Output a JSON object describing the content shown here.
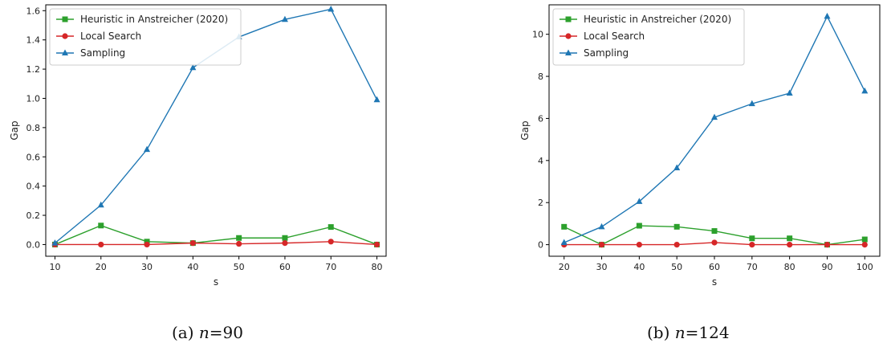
{
  "chart_data": [
    {
      "type": "line",
      "caption_prefix": "(a)",
      "caption_var": "n",
      "caption_value": "=90",
      "xlabel": "s",
      "ylabel": "Gap",
      "x": [
        10,
        20,
        30,
        40,
        50,
        60,
        70,
        80
      ],
      "xlim": [
        8,
        82
      ],
      "ylim": [
        -0.08,
        1.64
      ],
      "xticks": [
        10,
        20,
        30,
        40,
        50,
        60,
        70,
        80
      ],
      "yticks": [
        0.0,
        0.2,
        0.4,
        0.6,
        0.8,
        1.0,
        1.2,
        1.4,
        1.6
      ],
      "ytick_labels": [
        "0.0",
        "0.2",
        "0.4",
        "0.6",
        "0.8",
        "1.0",
        "1.2",
        "1.4",
        "1.6"
      ],
      "legend_position": "upper-left",
      "grid": false,
      "series": [
        {
          "name": "Heuristic in Anstreicher (2020)",
          "color": "#2ca02c",
          "marker": "square",
          "values": [
            0.0,
            0.13,
            0.02,
            0.01,
            0.045,
            0.045,
            0.12,
            0.0
          ]
        },
        {
          "name": "Local Search",
          "color": "#d62728",
          "marker": "circle",
          "values": [
            0.0,
            0.0,
            0.0,
            0.01,
            0.005,
            0.01,
            0.02,
            0.0
          ]
        },
        {
          "name": "Sampling",
          "color": "#1f77b4",
          "marker": "triangle",
          "values": [
            0.01,
            0.27,
            0.65,
            1.21,
            1.42,
            1.54,
            1.61,
            0.99
          ]
        }
      ]
    },
    {
      "type": "line",
      "caption_prefix": "(b)",
      "caption_var": "n",
      "caption_value": "=124",
      "xlabel": "s",
      "ylabel": "Gap",
      "x": [
        20,
        30,
        40,
        50,
        60,
        70,
        80,
        90,
        100
      ],
      "xlim": [
        16,
        104
      ],
      "ylim": [
        -0.55,
        11.4
      ],
      "xticks": [
        20,
        30,
        40,
        50,
        60,
        70,
        80,
        90,
        100
      ],
      "yticks": [
        0,
        2,
        4,
        6,
        8,
        10
      ],
      "ytick_labels": [
        "0",
        "2",
        "4",
        "6",
        "8",
        "10"
      ],
      "legend_position": "upper-left",
      "grid": false,
      "series": [
        {
          "name": "Heuristic in Anstreicher (2020)",
          "color": "#2ca02c",
          "marker": "square",
          "values": [
            0.85,
            0.0,
            0.9,
            0.85,
            0.65,
            0.3,
            0.3,
            0.0,
            0.25
          ]
        },
        {
          "name": "Local Search",
          "color": "#d62728",
          "marker": "circle",
          "values": [
            0.0,
            0.0,
            0.0,
            0.0,
            0.1,
            0.0,
            0.0,
            0.0,
            0.0
          ]
        },
        {
          "name": "Sampling",
          "color": "#1f77b4",
          "marker": "triangle",
          "values": [
            0.1,
            0.85,
            2.05,
            3.65,
            6.05,
            6.7,
            7.2,
            10.85,
            7.3
          ]
        }
      ]
    }
  ]
}
